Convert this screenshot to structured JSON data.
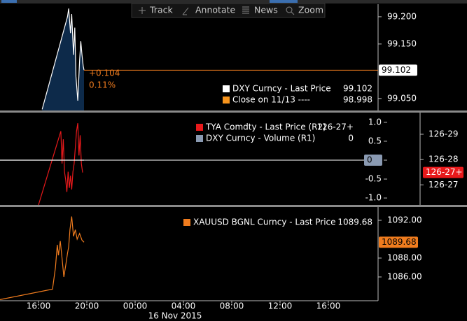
{
  "toolbar": {
    "buttons": [
      "Track",
      "Annotate",
      "News",
      "Zoom"
    ]
  },
  "chart_data": [
    {
      "type": "area",
      "xlim": [
        -11.19,
        20.12
      ],
      "ylim": [
        99.028,
        99.223
      ],
      "yticks": [
        {
          "value": 99.05,
          "label": "99.050"
        },
        {
          "value": 99.15,
          "label": "99.150"
        },
        {
          "value": 99.2,
          "label": "99.200"
        }
      ],
      "annotations": [
        "+0.104",
        "0.11%"
      ],
      "series": [
        {
          "name": "DXY Curncy - Last Price",
          "color": "#ffffff",
          "x": [
            -7.7,
            -5.6,
            -5.5,
            -5.35,
            -5.25,
            -5.1,
            -5.0,
            -4.9,
            -4.75,
            -4.6,
            -4.5,
            -4.4,
            -4.3,
            -4.23
          ],
          "values": [
            99.03,
            99.2,
            99.215,
            99.17,
            99.205,
            99.13,
            99.18,
            99.09,
            99.046,
            99.12,
            99.155,
            99.13,
            99.11,
            99.102
          ]
        }
      ],
      "close": {
        "name": "Close on 11/13 ----",
        "value": 98.998,
        "color": "#f7941d"
      }
    },
    {
      "type": "line",
      "xlim": [
        -11.19,
        20.12
      ],
      "ylim": [
        -1.183,
        1.257
      ],
      "yticks": [
        {
          "value": 1,
          "label": "1.0"
        },
        0.5,
        0,
        -0.5,
        {
          "value": -1,
          "label": "-1.0"
        }
      ],
      "y2lim": [
        126.819,
        126.933
      ],
      "y2ticks": [
        {
          "value": 126.84375,
          "label": "126-27"
        },
        {
          "value": 126.875,
          "label": "126-28"
        },
        {
          "value": 126.90625,
          "label": "126-29"
        }
      ],
      "series": [
        {
          "name": "TYA Comdty - Last Price (R2)",
          "color": "#e8191b",
          "axis": "y2",
          "x": [
            -8.0,
            -6.15,
            -6.05,
            -5.95,
            -5.85,
            -5.75,
            -5.65,
            -5.55,
            -5.45,
            -5.35,
            -5.25,
            -5.15,
            -5.05,
            -4.95,
            -4.85,
            -4.75,
            -4.65,
            -4.55,
            -4.45,
            -4.35
          ],
          "values": [
            126.819,
            126.91,
            126.87,
            126.9,
            126.86,
            126.85,
            126.835,
            126.86,
            126.84,
            126.855,
            126.838,
            126.86,
            126.87,
            126.89,
            126.91,
            126.92,
            126.88,
            126.905,
            126.87,
            126.859
          ],
          "value_labels": [
            null,
            null,
            null,
            null,
            null,
            null,
            null,
            null,
            null,
            null,
            null,
            null,
            null,
            null,
            null,
            null,
            null,
            null,
            null,
            "126-27+"
          ]
        },
        {
          "name": "DXY Curncy - Volume (R1)",
          "color": "#8a9ab2",
          "x": [
            -11.19,
            -4.23
          ],
          "values": [
            0,
            0
          ]
        }
      ]
    },
    {
      "type": "line",
      "xlim": [
        -11.19,
        20.12
      ],
      "ylim": [
        1083.48,
        1093.41
      ],
      "yticks": [
        {
          "value": 1086,
          "label": "1086.00"
        },
        {
          "value": 1088,
          "label": "1088.00"
        },
        {
          "value": 1092,
          "label": "1092.00"
        }
      ],
      "xticks": [
        {
          "value": -8,
          "label": "16:00"
        },
        {
          "value": -4,
          "label": "20:00"
        },
        {
          "value": 0,
          "label": "00:00"
        },
        {
          "value": 4,
          "label": "04:00"
        },
        {
          "value": 8,
          "label": "08:00"
        },
        {
          "value": 12,
          "label": "12:00"
        },
        {
          "value": 16,
          "label": "16:00"
        }
      ],
      "x_label": "16 Nov 2015",
      "series": [
        {
          "name": "XAUUSD BGNL Curncy - Last Price",
          "color": "#f07c1e",
          "x": [
            -11.19,
            -6.84,
            -6.6,
            -6.45,
            -6.35,
            -6.2,
            -6.05,
            -5.9,
            -5.75,
            -5.6,
            -5.5,
            -5.4,
            -5.25,
            -5.1,
            -4.95,
            -4.8,
            -4.6,
            -4.4,
            -4.23
          ],
          "values": [
            1083.6,
            1084.7,
            1087.0,
            1089.4,
            1088.3,
            1089.8,
            1088.0,
            1086.0,
            1087.2,
            1088.5,
            1089.2,
            1091.0,
            1092.4,
            1090.3,
            1091.0,
            1090.0,
            1090.6,
            1089.9,
            1089.68
          ]
        }
      ]
    }
  ]
}
